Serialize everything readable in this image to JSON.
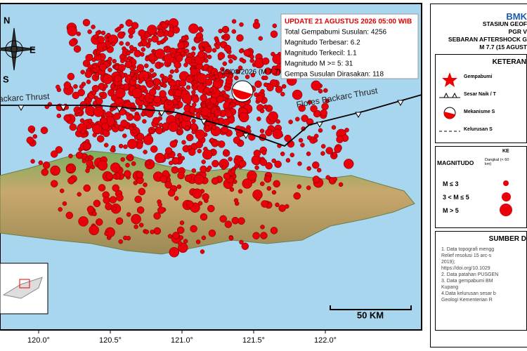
{
  "map": {
    "compass": {
      "n": "N",
      "e": "E",
      "s": "S"
    },
    "info": {
      "update": "UPDATE 21 AGUSTUS 2026 05:00 WIB",
      "lines": [
        "Total Gempabumi Susulan: 4256",
        "Magnitudo Terbesar: 6.2",
        "Magnitudo Terkecil: 1.1",
        "Magnitudo M >= 5: 31",
        "Gempa Susulan Dirasakan: 118"
      ]
    },
    "mainshock": "15/08/2026 (M 7.7)",
    "faults": [
      "Backarc Thrust",
      "Flores Backarc Thrust"
    ],
    "scale": "50 KM",
    "longitudes": [
      "120.0°",
      "120.5°",
      "121.0°",
      "121.5°",
      "122.0°"
    ]
  },
  "panel": {
    "logo": "BMK",
    "header": [
      "STASIUN GEOF",
      "PGR V",
      "SEBARAN AFTERSHOCK G",
      "M 7.7 (15 AGUST"
    ],
    "legend": {
      "title": "KETERAN",
      "items": [
        "Gempabumi",
        "Sesar Naik / T",
        "Mekanisme S",
        "Kelurusan S"
      ]
    },
    "magnitude": {
      "title": "MAGNITUDO",
      "col": "KE",
      "depth": "Dangkal (< 60 km)",
      "rows": [
        "M ≤ 3",
        "3 < M ≤ 5",
        "M > 5"
      ]
    },
    "sources": {
      "title": "SUMBER D",
      "lines": [
        "1. Data topografi mengg",
        "Relief resolusi 15 arc-s",
        "2019);",
        "https://doi.org/10.1029",
        "2. Data patahan PUSGEN",
        "3. Data gempabumi BM",
        "Kupang",
        "4.Data kelurusan sesar b",
        "Geologi Kementerian R"
      ]
    }
  }
}
